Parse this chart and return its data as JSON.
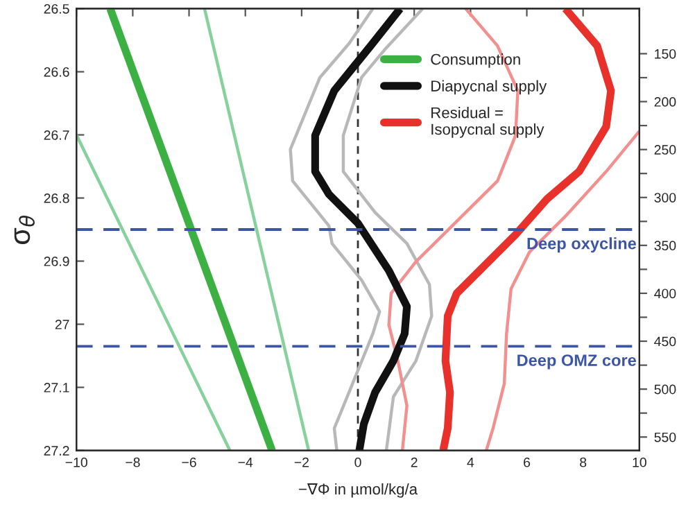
{
  "chart_data": {
    "type": "line",
    "xlabel": "−∇Φ in µmol/kg/a",
    "ylabel": "σ$_{θ}$",
    "xlim": [
      -10,
      10
    ],
    "xticks": [
      -10,
      -8,
      -6,
      -4,
      -2,
      0,
      2,
      4,
      6,
      8,
      10
    ],
    "ylim": [
      27.2,
      26.5
    ],
    "yticks": [
      26.5,
      26.6,
      26.7,
      26.8,
      26.9,
      27,
      27.1,
      27.2
    ],
    "y2lim": [
      564,
      103
    ],
    "y2ticks": [
      150,
      {
        "value": 175,
        "label": null
      },
      200,
      {
        "value": 225,
        "label": null
      },
      250,
      {
        "value": 275,
        "label": null
      },
      300,
      {
        "value": 325,
        "label": null
      },
      350,
      {
        "value": 375,
        "label": null
      },
      400,
      {
        "value": 425,
        "label": null
      },
      450,
      {
        "value": 475,
        "label": null
      },
      500,
      {
        "value": 525,
        "label": null
      },
      550
    ],
    "grid": false,
    "legend": "top right",
    "marker": "none",
    "line_style": "solid",
    "series": [
      {
        "color": "#86d19c",
        "x": [
          -5.45,
          -1.75
        ],
        "values": [
          26.5,
          27.2
        ]
      },
      {
        "color": "#86d19c",
        "x": [
          -10,
          -4.55
        ],
        "values": [
          26.7,
          27.2
        ]
      },
      {
        "color": "#b8b8b8",
        "x": [
          0.53,
          -0.31,
          -1.35,
          -2.4,
          -2.32,
          -1.03,
          -0.92,
          0.13,
          0.77,
          0.53,
          -0.19,
          -0.84,
          -0.75
        ],
        "values": [
          26.5,
          26.555,
          26.609,
          26.723,
          26.773,
          26.844,
          26.872,
          26.93,
          26.98,
          27.015,
          27.094,
          27.165,
          27.2
        ]
      },
      {
        "color": "#b8b8b8",
        "x": [
          2.3,
          0.93,
          0.13,
          -0.52,
          -0.52,
          0.61,
          1.74,
          2.54,
          2.62,
          2.06,
          1.26,
          1.01
        ],
        "values": [
          26.5,
          26.566,
          26.609,
          26.701,
          26.758,
          26.823,
          26.872,
          26.937,
          26.987,
          27.058,
          27.115,
          27.2
        ]
      },
      {
        "color": "#f29090",
        "x": [
          3.83,
          4.96,
          5.68,
          5.6,
          4.96,
          3.35,
          2.06,
          1.18,
          1.1,
          1.42,
          1.74,
          1.58
        ],
        "values": [
          26.5,
          26.559,
          26.63,
          26.701,
          26.773,
          26.844,
          26.901,
          26.951,
          27.001,
          27.058,
          27.129,
          27.2
        ]
      },
      {
        "color": "#f29090",
        "x": [
          10.0,
          8.82,
          7.37,
          6.09,
          5.44,
          5.28,
          5.2,
          4.8,
          4.56
        ],
        "values": [
          26.694,
          26.758,
          26.829,
          26.886,
          26.944,
          27.015,
          27.094,
          27.165,
          27.2
        ]
      },
      {
        "name": "Consumption",
        "color": "#3cb043",
        "x": [
          -8.8,
          -3.05
        ],
        "values": [
          26.5,
          27.2
        ]
      },
      {
        "name": "Diapycnal supply",
        "color": "#111111",
        "x": [
          1.5,
          0.45,
          -0.84,
          -1.52,
          -1.52,
          -1.03,
          0.0,
          1.1,
          1.74,
          1.66,
          1.26,
          0.61,
          0.21,
          0.05
        ],
        "values": [
          26.5,
          26.559,
          26.63,
          26.701,
          26.758,
          26.794,
          26.84,
          26.915,
          26.972,
          27.015,
          27.058,
          27.108,
          27.158,
          27.2
        ]
      },
      {
        "name": "Residual =\nIsopycnal supply",
        "color": "#e8312a",
        "x": [
          7.37,
          8.5,
          8.99,
          8.82,
          7.86,
          6.73,
          5.6,
          4.32,
          3.51,
          3.19,
          3.11,
          3.27,
          3.19,
          3.03
        ],
        "values": [
          26.5,
          26.559,
          26.63,
          26.687,
          26.758,
          26.801,
          26.858,
          26.915,
          26.951,
          26.987,
          27.058,
          27.108,
          27.165,
          27.2
        ]
      }
    ],
    "ref_lines": [
      {
        "axis": "x",
        "value": 0,
        "color": "#333333",
        "line_style": "dashed"
      },
      {
        "axis": "y",
        "value": 26.85,
        "label": "Deep oxycline",
        "color": "#3d55a5",
        "line_style": "dashed"
      },
      {
        "axis": "y",
        "value": 27.035,
        "label": "Deep OMZ core",
        "color": "#3d55a5",
        "line_style": "dashed"
      }
    ]
  }
}
